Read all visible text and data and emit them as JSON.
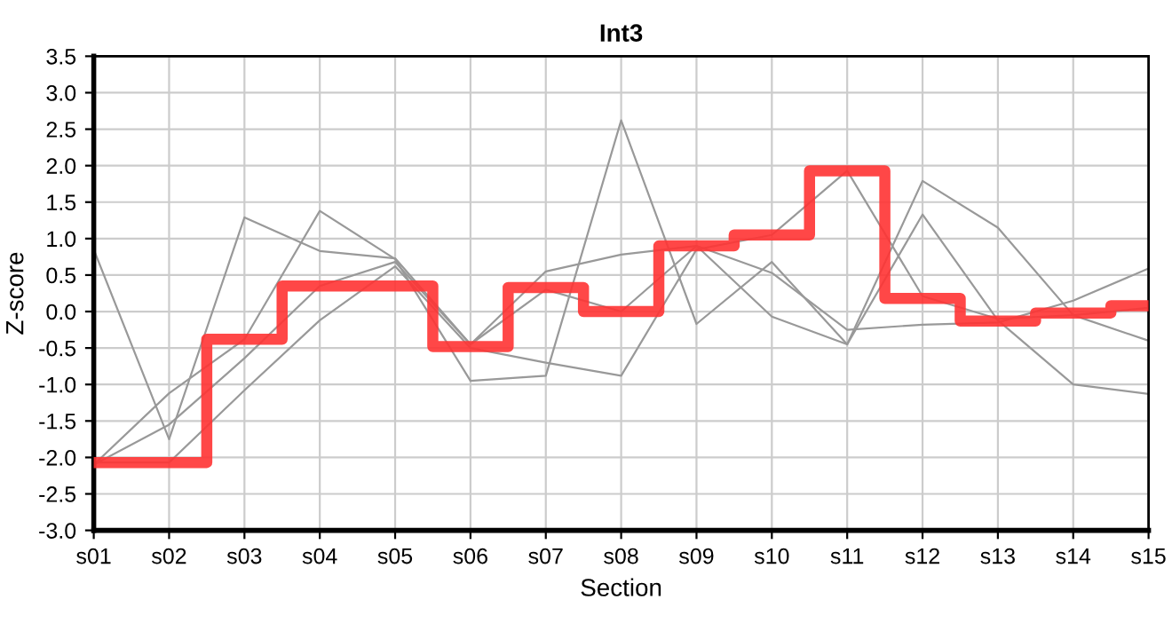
{
  "chart_data": {
    "type": "line",
    "title": "Int3",
    "xlabel": "Section",
    "ylabel": "Z-score",
    "categories": [
      "s01",
      "s02",
      "s03",
      "s04",
      "s05",
      "s06",
      "s07",
      "s08",
      "s09",
      "s10",
      "s11",
      "s12",
      "s13",
      "s14",
      "s15"
    ],
    "ylim": [
      -3.0,
      3.5
    ],
    "yticks": [
      {
        "value": -3.0,
        "label": "-3.0"
      },
      {
        "value": -2.5,
        "label": "-2.5"
      },
      {
        "value": -2.0,
        "label": "-2.0"
      },
      {
        "value": -1.5,
        "label": "-1.5"
      },
      {
        "value": -1.0,
        "label": "-1.0"
      },
      {
        "value": -0.5,
        "label": "-0.5"
      },
      {
        "value": 0,
        "label": "0.0"
      },
      {
        "value": 0.5,
        "label": "0.5"
      },
      {
        "value": 1.0,
        "label": "1.0"
      },
      {
        "value": 1.5,
        "label": "1.5"
      },
      {
        "value": 2.0,
        "label": "2.0"
      },
      {
        "value": 2.5,
        "label": "2.5"
      },
      {
        "value": 3.0,
        "label": "3.0"
      },
      {
        "value": 3.5,
        "label": "3.5"
      }
    ],
    "grid": true,
    "series": [
      {
        "color": "#999999",
        "values": [
          0.85,
          -1.75,
          1.29,
          0.83,
          0.73,
          -0.45,
          0.55,
          0.78,
          0.9,
          0.53,
          -0.25,
          -0.18,
          -0.15,
          0.15,
          0.59
        ]
      },
      {
        "color": "#999999",
        "values": [
          -2.1,
          -1.12,
          -0.38,
          1.38,
          0.72,
          -0.95,
          -0.88,
          2.62,
          -0.17,
          0.68,
          -0.45,
          1.79,
          1.15,
          -0.05,
          -0.4
        ]
      },
      {
        "color": "#999999",
        "values": [
          -2.1,
          -1.55,
          -0.64,
          0.35,
          0.68,
          -0.45,
          0.3,
          0.0,
          0.9,
          -0.07,
          -0.45,
          1.33,
          -0.12,
          -1.0,
          -1.13
        ]
      },
      {
        "color": "#999999",
        "values": [
          -2.07,
          -2.07,
          -1.08,
          -0.12,
          0.62,
          -0.5,
          -0.7,
          -0.88,
          0.85,
          1.05,
          1.93,
          0.21,
          -0.1,
          -0.05,
          0.05
        ]
      },
      {
        "type": "step",
        "color": "#ff3333",
        "values": [
          -2.07,
          -2.07,
          -0.38,
          0.35,
          0.35,
          -0.48,
          0.33,
          0.0,
          0.9,
          1.05,
          1.93,
          0.18,
          -0.13,
          -0.02,
          0.08
        ]
      }
    ]
  }
}
